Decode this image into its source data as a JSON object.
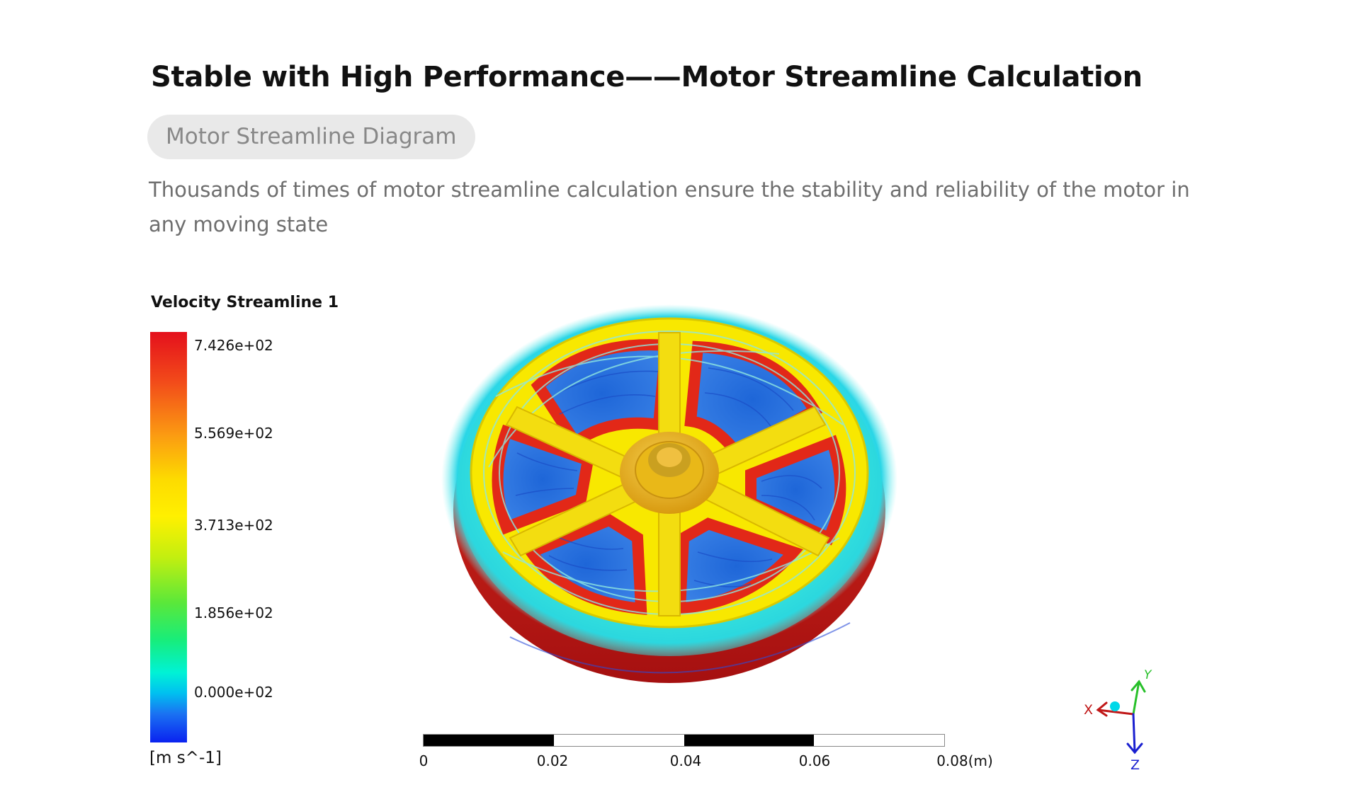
{
  "header": {
    "title": "Stable with High Performance——Motor Streamline Calculation",
    "tag": "Motor Streamline Diagram",
    "description": "Thousands of times of motor streamline calculation ensure the stability and reliability of the motor in any moving state"
  },
  "legend": {
    "title": "Velocity Streamline 1",
    "ticks": [
      "7.426e+02",
      "5.569e+02",
      "3.713e+02",
      "1.856e+02",
      "0.000e+02"
    ],
    "unit": "[m s^-1]",
    "colors": [
      "#e4101c",
      "#fb9a12",
      "#fff000",
      "#5ae83a",
      "#00f2d6",
      "#0a22f0"
    ]
  },
  "scale_bar": {
    "labels": [
      "0",
      "0.02",
      "0.04",
      "0.06",
      "0.08(m)"
    ]
  },
  "axes_triad": {
    "x": "X",
    "y": "Y",
    "z": "Z",
    "colors": {
      "x": "#c01818",
      "y": "#28c02a",
      "z": "#1a20d0",
      "center": "#00d8e8"
    }
  },
  "figure": {
    "subject": "motor-streamline-render",
    "colors": {
      "rotor": "#f8e800",
      "hub": "#e9b818",
      "coils": "#e22818",
      "flow-blue": "#2a6ad8",
      "halo": "#2be2dc"
    }
  }
}
